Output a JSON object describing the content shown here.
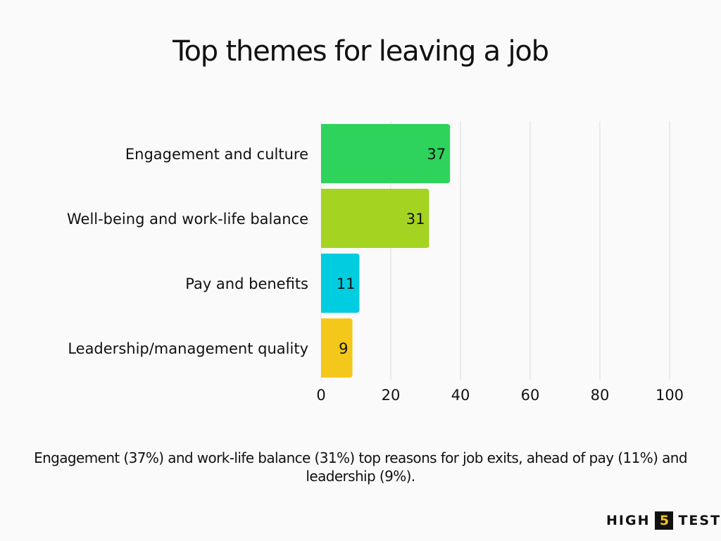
{
  "chart_data": {
    "type": "bar",
    "orientation": "horizontal",
    "title": "Top themes for leaving a job",
    "categories": [
      "Engagement and culture",
      "Well-being and work-life balance",
      "Pay and benefits",
      "Leadership/management quality"
    ],
    "values": [
      37,
      31,
      11,
      9
    ],
    "colors": [
      "#2ed35c",
      "#a5d322",
      "#00cde0",
      "#f4c81a"
    ],
    "xlim": [
      0,
      100
    ],
    "xticks": [
      0,
      20,
      40,
      60,
      80,
      100
    ],
    "xlabel": "",
    "ylabel": "",
    "grid": "vertical",
    "data_labels": true
  },
  "caption": "Engagement (37%) and work-life balance (31%) top reasons for job exits, ahead of pay (11%) and leadership (9%).",
  "brand": {
    "left": "HIGH",
    "number": "5",
    "right": "TEST",
    "number_bg_color": "#111111",
    "number_color": "#f5c518"
  }
}
